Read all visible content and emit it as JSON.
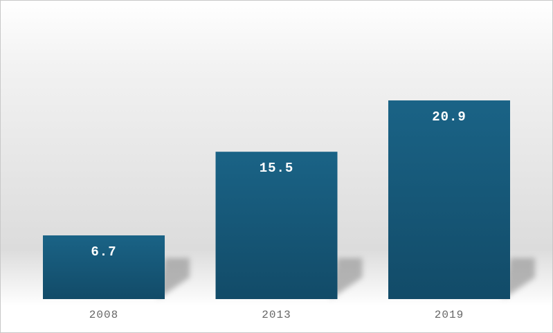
{
  "chart_data": {
    "type": "bar",
    "categories": [
      "2008",
      "2013",
      "2019"
    ],
    "values": [
      6.7,
      15.5,
      20.9
    ],
    "color": "#17597a"
  }
}
